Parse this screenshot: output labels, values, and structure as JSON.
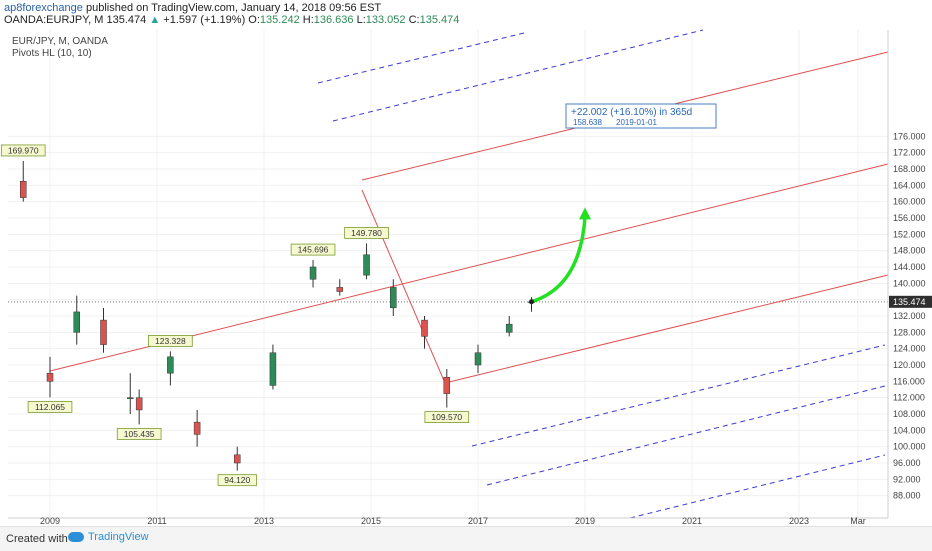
{
  "header": {
    "author": "ap8forexchange",
    "published": "published on TradingView.com, January 14, 2018 09:56 EST",
    "symbol": "OANDA:EURJPY, M",
    "last": "135.474",
    "change": "+1.597 (+1.19%)",
    "o_label": "O:",
    "o": "135.242",
    "h_label": "H:",
    "h": "136.636",
    "l_label": "L:",
    "l": "133.052",
    "c_label": "C:",
    "c": "135.474"
  },
  "legend": {
    "title": "EUR/JPY, M, OANDA",
    "indicator": "Pivots HL (10, 10)"
  },
  "colors": {
    "up": "#2e8b57",
    "down": "#d9534f",
    "channel": "#e05050",
    "dashed": "#3b3bd1",
    "arrow": "#22e022",
    "label_bg": "#f6f9d0",
    "label_border": "#7a9a30",
    "price_tag": "#2f2f2f"
  },
  "chart_data": {
    "type": "candlestick",
    "title": "EUR/JPY, M, OANDA",
    "x_ticks": [
      "2009",
      "2011",
      "2013",
      "2015",
      "2017",
      "2019",
      "2021",
      "2023",
      "Mar"
    ],
    "y_ticks": [
      "88.000",
      "92.000",
      "96.000",
      "100.000",
      "104.000",
      "108.000",
      "112.000",
      "116.000",
      "120.000",
      "124.000",
      "128.000",
      "132.000",
      "136.000",
      "140.000",
      "144.000",
      "148.000",
      "152.000",
      "156.000",
      "160.000",
      "164.000",
      "168.000",
      "172.000",
      "176.000"
    ],
    "ylim": [
      84,
      180
    ],
    "last_price": "135.474",
    "pivot_labels": [
      {
        "text": "169.970",
        "date": "2008-07",
        "price": 169.97,
        "side": "above"
      },
      {
        "text": "112.065",
        "date": "2009-01",
        "price": 112.065,
        "side": "below"
      },
      {
        "text": "123.328",
        "date": "2011-04",
        "price": 123.328,
        "side": "above"
      },
      {
        "text": "105.435",
        "date": "2010-09",
        "price": 105.435,
        "side": "below"
      },
      {
        "text": "94.120",
        "date": "2012-07",
        "price": 94.12,
        "side": "below"
      },
      {
        "text": "145.696",
        "date": "2013-12",
        "price": 145.696,
        "side": "above"
      },
      {
        "text": "149.780",
        "date": "2014-12",
        "price": 149.78,
        "side": "above"
      },
      {
        "text": "109.570",
        "date": "2016-06",
        "price": 109.57,
        "side": "below"
      }
    ],
    "projection": {
      "line1": "+22.002 (+16.10%) in 365d",
      "line2_value": "158.638",
      "line2_date": "2019-01-01",
      "from_date": "2018-01",
      "from_price": 135.5,
      "to_date": "2019-01",
      "to_price": 158.6
    },
    "series": [
      {
        "date": "2008-07",
        "values": [
          165.0,
          169.97,
          160.0,
          161.0
        ]
      },
      {
        "date": "2009-01",
        "values": [
          118.0,
          122.0,
          112.065,
          116.0
        ]
      },
      {
        "date": "2009-07",
        "values": [
          128.0,
          137.0,
          125.0,
          133.0
        ]
      },
      {
        "date": "2010-01",
        "values": [
          131.0,
          134.0,
          123.0,
          125.0
        ]
      },
      {
        "date": "2010-07",
        "values": [
          112.0,
          118.0,
          108.0,
          112.0
        ]
      },
      {
        "date": "2010-09",
        "values": [
          112.0,
          114.0,
          105.435,
          109.0
        ]
      },
      {
        "date": "2011-04",
        "values": [
          118.0,
          123.328,
          115.0,
          122.0
        ]
      },
      {
        "date": "2011-10",
        "values": [
          106.0,
          109.0,
          100.0,
          103.0
        ]
      },
      {
        "date": "2012-07",
        "values": [
          98.0,
          100.0,
          94.12,
          96.0
        ]
      },
      {
        "date": "2013-03",
        "values": [
          115.0,
          125.0,
          114.0,
          123.0
        ]
      },
      {
        "date": "2013-12",
        "values": [
          141.0,
          145.696,
          139.0,
          144.0
        ]
      },
      {
        "date": "2014-06",
        "values": [
          139.0,
          141.0,
          137.0,
          138.0
        ]
      },
      {
        "date": "2014-12",
        "values": [
          142.0,
          149.78,
          141.0,
          147.0
        ]
      },
      {
        "date": "2015-06",
        "values": [
          134.0,
          141.0,
          132.0,
          139.0
        ]
      },
      {
        "date": "2016-01",
        "values": [
          131.0,
          132.0,
          124.0,
          127.0
        ]
      },
      {
        "date": "2016-06",
        "values": [
          117.0,
          119.0,
          109.57,
          113.0
        ]
      },
      {
        "date": "2017-01",
        "values": [
          120.0,
          125.0,
          118.0,
          123.0
        ]
      },
      {
        "date": "2017-08",
        "values": [
          128.0,
          132.0,
          127.0,
          130.0
        ]
      },
      {
        "date": "2018-01",
        "values": [
          135.242,
          136.636,
          133.052,
          135.474
        ]
      }
    ]
  },
  "footer": {
    "created_with": "Created with",
    "brand": "TradingView"
  }
}
